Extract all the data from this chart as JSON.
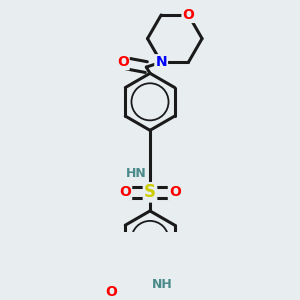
{
  "bg_color": "#e8eef0",
  "bond_color": "#1a1a1a",
  "line_width": 2.2,
  "aromatic_inner_scale": 0.65,
  "atom_colors": {
    "O": "#ff0000",
    "N": "#0000ff",
    "S": "#cccc00",
    "C": "#1a1a1a",
    "H": "#4a8a8a"
  },
  "font_size": 10,
  "small_font_size": 9
}
